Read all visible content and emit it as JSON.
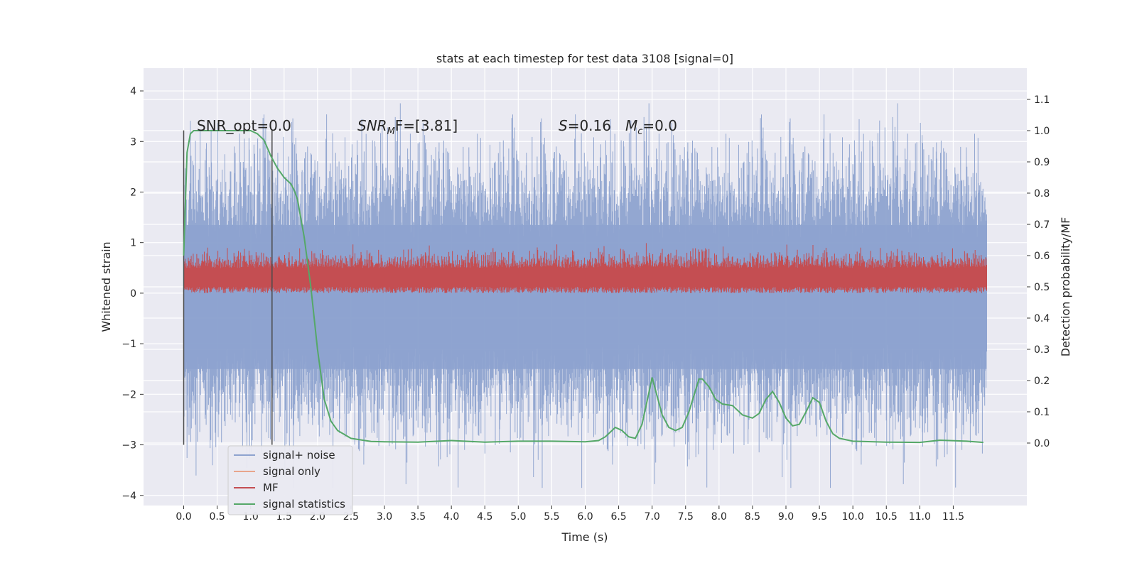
{
  "chart_data": {
    "type": "line",
    "title": "stats at each timestep for test data 3108 [signal=0]",
    "xlabel": "Time (s)",
    "ylabel": "Whitened strain",
    "y2label": "Detection probability/MF",
    "xlim": [
      -0.6,
      12.6
    ],
    "ylim": [
      -4.2,
      4.45
    ],
    "y2lim": [
      -0.2,
      1.2
    ],
    "xticks": [
      "0.0",
      "0.5",
      "1.0",
      "1.5",
      "2.0",
      "2.5",
      "3.0",
      "3.5",
      "4.0",
      "4.5",
      "5.0",
      "5.5",
      "6.0",
      "6.5",
      "7.0",
      "7.5",
      "8.0",
      "8.5",
      "9.0",
      "9.5",
      "10.0",
      "10.5",
      "11.0",
      "11.5"
    ],
    "yticks": [
      "4",
      "3",
      "2",
      "1",
      "0",
      "−1",
      "−2",
      "−3",
      "−4"
    ],
    "y2ticks": [
      "1.1",
      "1.0",
      "0.9",
      "0.8",
      "0.7",
      "0.6",
      "0.5",
      "0.4",
      "0.3",
      "0.2",
      "0.1",
      "0.0"
    ],
    "grid": true,
    "legend_position": "lower-left",
    "legend": [
      "signal+ noise",
      "signal only",
      "MF",
      "signal statistics"
    ],
    "colors": {
      "noise": "#8ea3cf",
      "signal_only": "#e8a58c",
      "mf": "#c44e52",
      "stats": "#55a868",
      "markers": "#4a4a4a",
      "plot_bg": "#eaeaf2"
    },
    "annotations": {
      "snr_opt": "SNR_opt=0.0",
      "snr_mf_prefix": "SNR",
      "snr_mf_sub": "M",
      "snr_mf_suffix": "F=[3.81]",
      "s_prefix": "S",
      "s_value": "=0.16",
      "mc_prefix": "M",
      "mc_sub": "c",
      "mc_value": "=0.0"
    },
    "marker_times": [
      0.0,
      1.32
    ],
    "series": [
      {
        "name": "signal+ noise",
        "envelope": {
          "t_range": [
            0.0,
            12.0
          ],
          "y_range": [
            -3.85,
            4.1
          ]
        }
      },
      {
        "name": "signal only",
        "values": []
      },
      {
        "name": "MF",
        "envelope": {
          "t_range": [
            0.0,
            12.0
          ],
          "y2_range": [
            0.48,
            0.65
          ]
        }
      },
      {
        "name": "signal statistics",
        "axis": "right",
        "x": [
          0.0,
          0.05,
          0.1,
          0.15,
          0.2,
          0.3,
          0.5,
          0.7,
          0.9,
          1.0,
          1.1,
          1.2,
          1.3,
          1.4,
          1.5,
          1.6,
          1.65,
          1.7,
          1.8,
          1.9,
          2.0,
          2.1,
          2.2,
          2.3,
          2.5,
          2.8,
          3.0,
          3.5,
          4.0,
          4.5,
          5.0,
          5.5,
          6.0,
          6.2,
          6.3,
          6.4,
          6.45,
          6.55,
          6.65,
          6.75,
          6.85,
          6.95,
          7.0,
          7.05,
          7.15,
          7.25,
          7.35,
          7.45,
          7.55,
          7.65,
          7.7,
          7.75,
          7.85,
          7.95,
          8.05,
          8.2,
          8.35,
          8.5,
          8.6,
          8.7,
          8.8,
          8.9,
          9.0,
          9.1,
          9.2,
          9.3,
          9.4,
          9.5,
          9.6,
          9.7,
          9.8,
          10.0,
          10.5,
          11.0,
          11.3,
          11.7,
          11.95
        ],
        "y": [
          0.6,
          0.93,
          0.99,
          1.0,
          1.0,
          1.0,
          1.0,
          1.0,
          1.0,
          1.0,
          0.99,
          0.97,
          0.92,
          0.88,
          0.85,
          0.83,
          0.81,
          0.78,
          0.66,
          0.5,
          0.3,
          0.14,
          0.07,
          0.04,
          0.015,
          0.005,
          0.004,
          0.003,
          0.008,
          0.003,
          0.006,
          0.006,
          0.004,
          0.008,
          0.02,
          0.04,
          0.05,
          0.04,
          0.02,
          0.015,
          0.06,
          0.16,
          0.21,
          0.17,
          0.09,
          0.05,
          0.04,
          0.05,
          0.1,
          0.17,
          0.205,
          0.205,
          0.18,
          0.14,
          0.125,
          0.12,
          0.09,
          0.08,
          0.095,
          0.14,
          0.165,
          0.13,
          0.08,
          0.055,
          0.06,
          0.1,
          0.145,
          0.13,
          0.07,
          0.03,
          0.015,
          0.006,
          0.003,
          0.002,
          0.009,
          0.006,
          0.002
        ]
      }
    ]
  }
}
